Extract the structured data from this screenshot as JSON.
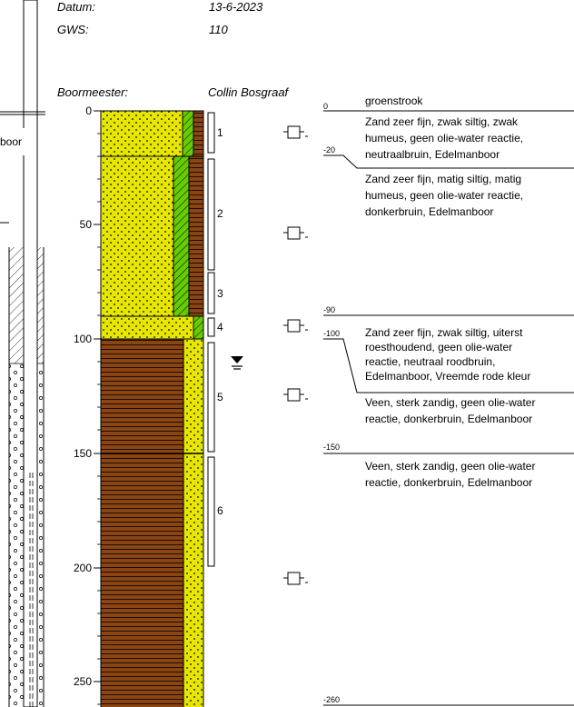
{
  "header": {
    "datum_label": "Datum:",
    "datum_value": "13-6-2023",
    "gws_label": "GWS:",
    "gws_value": "110",
    "boormeester_label": "Boormeester:",
    "boormeester_value": "Collin Bosgraaf"
  },
  "left_label": "boor",
  "depth_axis": {
    "ticks": [
      "0",
      "50",
      "100",
      "150",
      "200",
      "250"
    ]
  },
  "sample_numbers": [
    "1",
    "2",
    "3",
    "4",
    "5",
    "6"
  ],
  "right_depths": [
    "0",
    "-20",
    "-90",
    "-100",
    "-150",
    "-260"
  ],
  "layers": [
    {
      "lines": [
        "groenstrook"
      ]
    },
    {
      "lines": [
        "Zand zeer fijn, zwak siltig, zwak",
        "humeus, geen olie-water reactie,",
        "neutraalbruin, Edelmanboor"
      ]
    },
    {
      "lines": [
        "Zand zeer fijn, matig siltig, matig",
        "humeus, geen olie-water reactie,",
        "donkerbruin, Edelmanboor"
      ]
    },
    {
      "lines": [
        "Zand zeer fijn, zwak siltig, uiterst",
        "roesthoudend, geen olie-water",
        "reactie, neutraal roodbruin,",
        "Edelmanboor, Vreemde rode kleur"
      ]
    },
    {
      "lines": [
        "Veen, sterk zandig, geen olie-water",
        "reactie, donkerbruin, Edelmanboor"
      ]
    },
    {
      "lines": [
        "Veen, sterk zandig, geen olie-water",
        "reactie, donkerbruin, Edelmanboor"
      ]
    }
  ],
  "colors": {
    "sand": "#e6e600",
    "peat": "#8b4513",
    "humus": "#66cc00"
  }
}
